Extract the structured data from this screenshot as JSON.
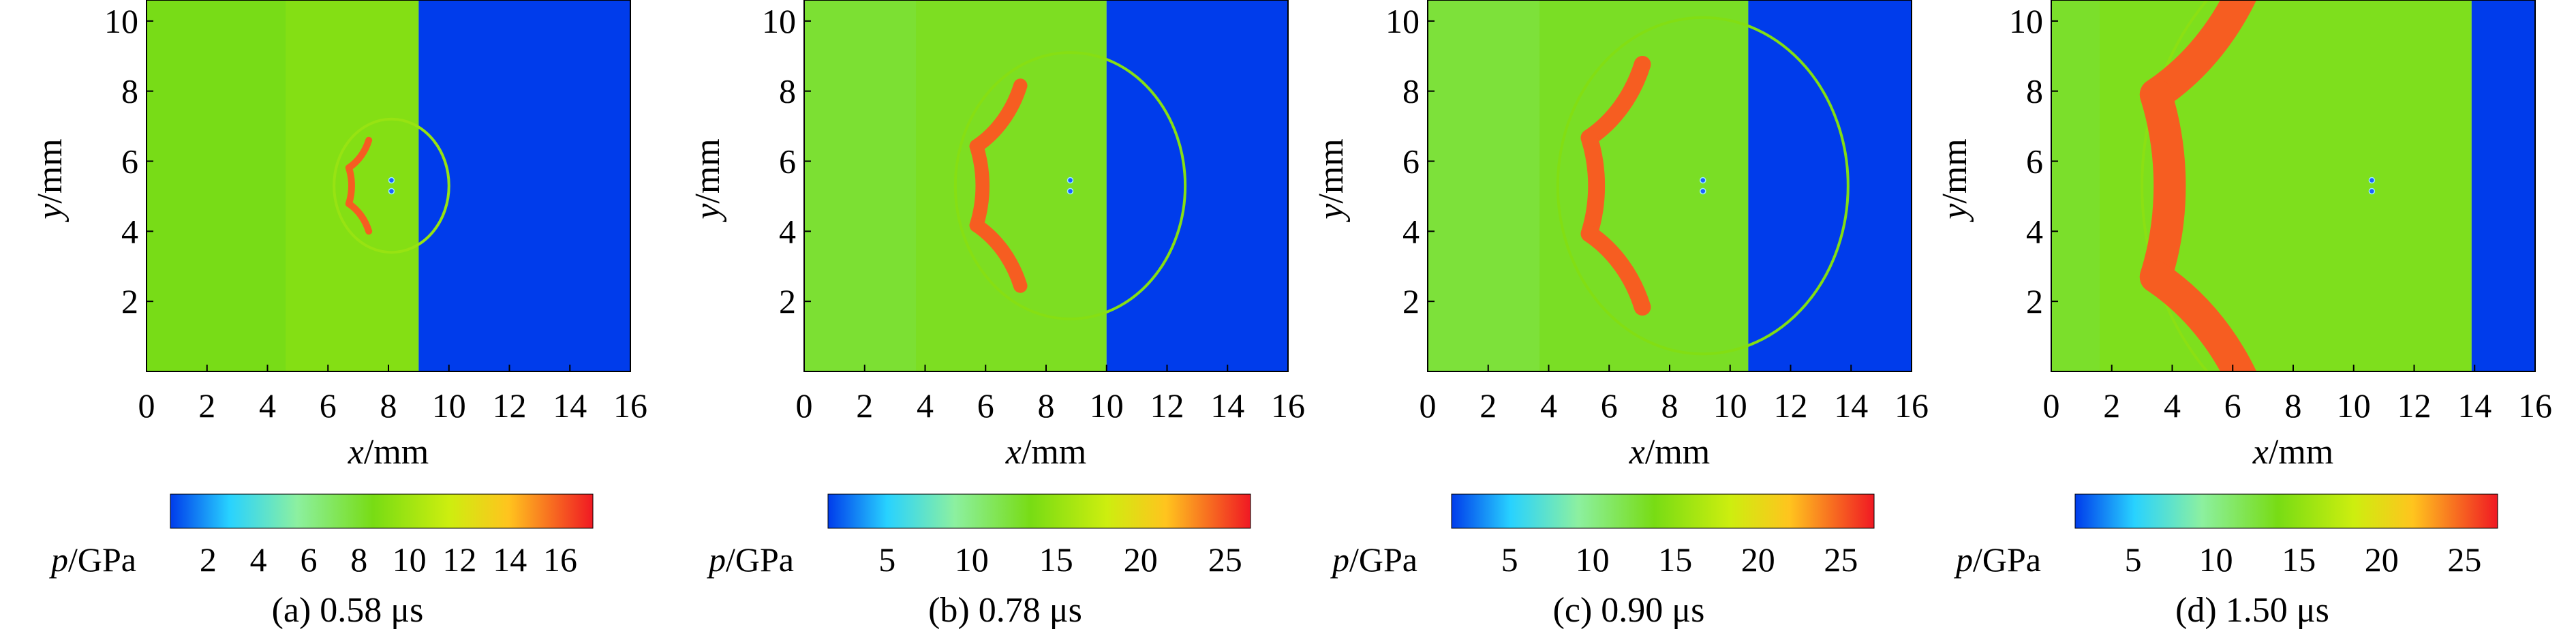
{
  "chart_data": [
    {
      "type": "heatmap",
      "caption_label": "(a)",
      "time": "0.58 μs",
      "xlabel_var": "x",
      "xlabel_unit": "/mm",
      "ylabel_var": "y",
      "ylabel_unit": "/mm",
      "xlim": [
        0,
        16
      ],
      "ylim": [
        0,
        10.6
      ],
      "xticks": [
        "0",
        "2",
        "4",
        "6",
        "8",
        "10",
        "12",
        "14",
        "16"
      ],
      "yticks": [
        "2",
        "4",
        "6",
        "8",
        "10"
      ],
      "colorbar": {
        "var": "p",
        "unit": "/GPa",
        "min": 0.5,
        "max": 17.3,
        "ticks": [
          "2",
          "4",
          "6",
          "8",
          "10",
          "12",
          "14",
          "16"
        ]
      },
      "field": {
        "shock_front_x": 9.0,
        "arc_center": [
          8.1,
          5.3
        ],
        "arc_radius": 1.5,
        "wave_radius": 1.9,
        "plateau_edge_x": 4.6,
        "pressure_ahead": 0.5,
        "pressure_behind": 8.5,
        "pressure_peak": 17.0
      }
    },
    {
      "type": "heatmap",
      "caption_label": "(b)",
      "time": "0.78 μs",
      "xlabel_var": "x",
      "xlabel_unit": "/mm",
      "ylabel_var": "y",
      "ylabel_unit": "/mm",
      "xlim": [
        0,
        16
      ],
      "ylim": [
        0,
        10.6
      ],
      "xticks": [
        "0",
        "2",
        "4",
        "6",
        "8",
        "10",
        "12",
        "14",
        "16"
      ],
      "yticks": [
        "2",
        "4",
        "6",
        "8",
        "10"
      ],
      "colorbar": {
        "var": "p",
        "unit": "/GPa",
        "min": 1.5,
        "max": 26.5,
        "ticks": [
          "5",
          "10",
          "15",
          "20",
          "25"
        ]
      },
      "field": {
        "shock_front_x": 10.0,
        "arc_center": [
          8.8,
          5.3
        ],
        "arc_radius": 3.3,
        "wave_radius": 3.8,
        "plateau_edge_x": 3.7,
        "pressure_ahead": 1.5,
        "pressure_behind": 12.5,
        "pressure_peak": 26.0
      }
    },
    {
      "type": "heatmap",
      "caption_label": "(c)",
      "time": "0.90 μs",
      "xlabel_var": "x",
      "xlabel_unit": "/mm",
      "ylabel_var": "y",
      "ylabel_unit": "/mm",
      "xlim": [
        0,
        16
      ],
      "ylim": [
        0,
        10.6
      ],
      "xticks": [
        "0",
        "2",
        "4",
        "6",
        "8",
        "10",
        "12",
        "14",
        "16"
      ],
      "yticks": [
        "2",
        "4",
        "6",
        "8",
        "10"
      ],
      "colorbar": {
        "var": "p",
        "unit": "/GPa",
        "min": 1.5,
        "max": 27.0,
        "ticks": [
          "5",
          "10",
          "15",
          "20",
          "25"
        ]
      },
      "field": {
        "shock_front_x": 10.6,
        "arc_center": [
          9.1,
          5.3
        ],
        "arc_radius": 4.0,
        "wave_radius": 4.8,
        "plateau_edge_x": 3.7,
        "pressure_ahead": 1.5,
        "pressure_behind": 12.5,
        "pressure_peak": 26.5
      }
    },
    {
      "type": "heatmap",
      "caption_label": "(d)",
      "time": "1.50 μs",
      "xlabel_var": "x",
      "xlabel_unit": "/mm",
      "ylabel_var": "y",
      "ylabel_unit": "/mm",
      "xlim": [
        0,
        16
      ],
      "ylim": [
        0,
        10.6
      ],
      "xticks": [
        "0",
        "2",
        "4",
        "6",
        "8",
        "10",
        "12",
        "14",
        "16"
      ],
      "yticks": [
        "2",
        "4",
        "6",
        "8",
        "10"
      ],
      "colorbar": {
        "var": "p",
        "unit": "/GPa",
        "min": 1.5,
        "max": 27.0,
        "ticks": [
          "5",
          "10",
          "15",
          "20",
          "25"
        ]
      },
      "field": {
        "shock_front_x": 13.9,
        "arc_center": [
          10.6,
          5.3
        ],
        "arc_radius": 7.6,
        "wave_radius": 7.6,
        "plateau_edge_x": 1.6,
        "pressure_ahead": 1.5,
        "pressure_behind": 13.0,
        "pressure_peak": 26.0
      }
    }
  ]
}
